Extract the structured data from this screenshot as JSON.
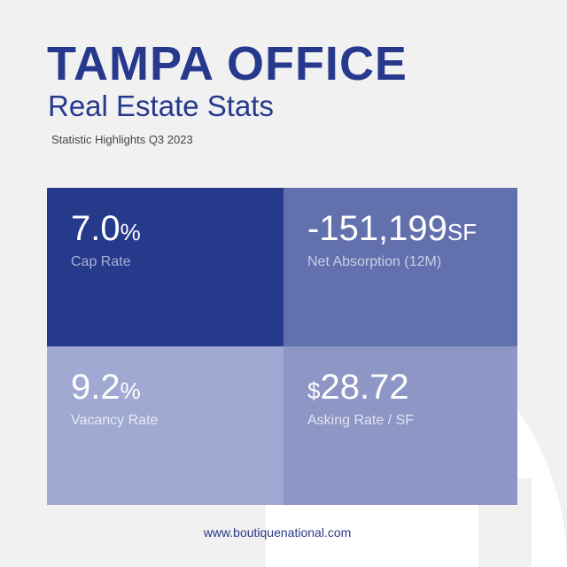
{
  "header": {
    "title": "TAMPA OFFICE",
    "subtitle": "Real Estate Stats",
    "highlights": "Statistic Highlights Q3 2023"
  },
  "stats": [
    {
      "prefix": "",
      "value": "7.0",
      "unit": "%",
      "label": "Cap Rate"
    },
    {
      "prefix": "",
      "value": "-151,199",
      "unit": "SF",
      "label": "Net Absorption (12M)"
    },
    {
      "prefix": "",
      "value": "9.2",
      "unit": "%",
      "label": "Vacancy Rate"
    },
    {
      "prefix": "$",
      "value": "28.72",
      "unit": "",
      "label": "Asking Rate / SF"
    }
  ],
  "footer": {
    "website": "www.boutiquenational.com"
  },
  "colors": {
    "brand_navy": "#27398c",
    "tile_dark": "#263a8b",
    "tile_mid": "#6271ad",
    "tile_light": "#a0a9d2",
    "tile_muted": "#8d96c4",
    "background": "#f1f1f2"
  }
}
